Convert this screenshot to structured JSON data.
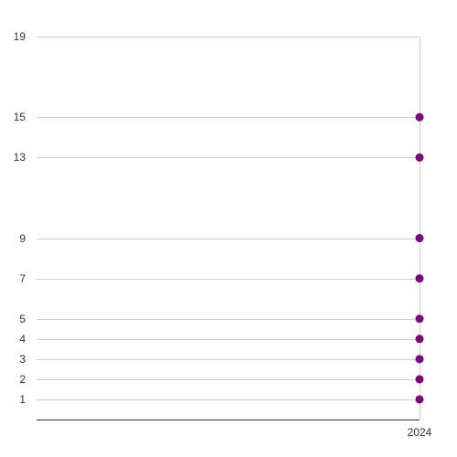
{
  "chart_data": {
    "type": "scatter",
    "title": "",
    "xlabel": "",
    "ylabel": "",
    "x_categories": [
      "2024"
    ],
    "y_ticks": [
      1,
      2,
      3,
      4,
      5,
      7,
      9,
      13,
      15,
      19
    ],
    "ylim": [
      0,
      19
    ],
    "grid": true,
    "marker_color": "#800080",
    "series": [
      {
        "points": [
          {
            "x": "2024",
            "y": 1
          },
          {
            "x": "2024",
            "y": 2
          },
          {
            "x": "2024",
            "y": 3
          },
          {
            "x": "2024",
            "y": 4
          },
          {
            "x": "2024",
            "y": 5
          },
          {
            "x": "2024",
            "y": 7
          },
          {
            "x": "2024",
            "y": 9
          },
          {
            "x": "2024",
            "y": 13
          },
          {
            "x": "2024",
            "y": 15
          }
        ]
      }
    ]
  }
}
